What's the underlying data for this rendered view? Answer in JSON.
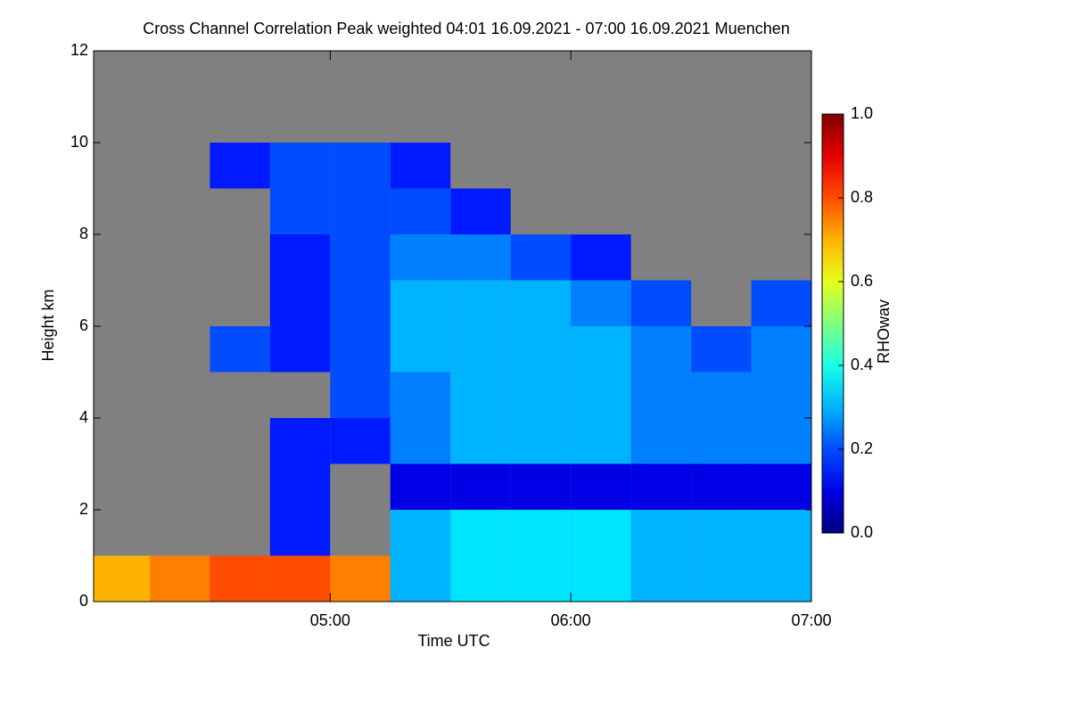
{
  "chart_data": {
    "type": "heatmap",
    "title": "Cross Channel Correlation Peak weighted   04:01 16.09.2021 - 07:00 16.09.2021 Muenchen",
    "x_label": "Time UTC",
    "y_label": "Height km",
    "colorbar_label": "RHOwav",
    "x": [
      4.125,
      4.375,
      4.625,
      4.875,
      5.125,
      5.375,
      5.625,
      5.875,
      6.125,
      6.375,
      6.625,
      6.875
    ],
    "y": [
      0.5,
      1.5,
      2.5,
      3.5,
      4.5,
      5.5,
      6.5,
      7.5,
      8.5,
      9.5,
      10.5,
      11.5
    ],
    "values": [
      [
        0.7,
        0.75,
        0.8,
        0.8,
        0.75,
        0.3,
        0.35,
        0.35,
        0.35,
        0.3,
        0.3,
        0.3
      ],
      [
        null,
        null,
        null,
        0.15,
        null,
        0.3,
        0.35,
        0.35,
        0.35,
        0.3,
        0.3,
        0.3
      ],
      [
        null,
        null,
        null,
        0.15,
        null,
        0.1,
        0.1,
        0.1,
        0.1,
        0.1,
        0.1,
        0.1
      ],
      [
        null,
        null,
        null,
        0.15,
        0.15,
        0.25,
        0.3,
        0.3,
        0.3,
        0.25,
        0.25,
        0.25
      ],
      [
        null,
        null,
        null,
        null,
        0.2,
        0.25,
        0.3,
        0.3,
        0.3,
        0.25,
        0.25,
        0.25
      ],
      [
        null,
        null,
        0.2,
        0.15,
        0.2,
        0.3,
        0.3,
        0.3,
        0.3,
        0.25,
        0.2,
        0.25
      ],
      [
        null,
        null,
        null,
        0.15,
        0.2,
        0.3,
        0.3,
        0.3,
        0.25,
        0.2,
        null,
        0.2
      ],
      [
        null,
        null,
        null,
        0.15,
        0.2,
        0.25,
        0.25,
        0.2,
        0.15,
        null,
        null,
        null
      ],
      [
        null,
        null,
        null,
        0.2,
        0.2,
        0.2,
        0.15,
        null,
        null,
        null,
        null,
        null
      ],
      [
        null,
        null,
        0.15,
        0.2,
        0.2,
        0.15,
        null,
        null,
        null,
        null,
        null,
        null
      ],
      [
        null,
        null,
        null,
        null,
        null,
        null,
        null,
        null,
        null,
        null,
        null,
        null
      ],
      [
        null,
        null,
        null,
        null,
        null,
        null,
        null,
        null,
        null,
        null,
        null,
        null
      ]
    ],
    "background_color": "#808080",
    "xlim": [
      4.0167,
      7.0
    ],
    "xticks": [
      {
        "value": 5,
        "label": "05:00"
      },
      {
        "value": 6,
        "label": "06:00"
      },
      {
        "value": 7,
        "label": "07:00"
      }
    ],
    "ylim": [
      0,
      12
    ],
    "yticks": [
      0,
      2,
      4,
      6,
      8,
      10,
      12
    ],
    "clim": [
      0,
      1
    ],
    "cticks": [
      {
        "value": 0,
        "label": "0.0"
      },
      {
        "value": 0.2,
        "label": "0.2"
      },
      {
        "value": 0.4,
        "label": "0.4"
      },
      {
        "value": 0.6,
        "label": "0.6"
      },
      {
        "value": 0.8,
        "label": "0.8"
      },
      {
        "value": 1,
        "label": "1.0"
      }
    ]
  }
}
